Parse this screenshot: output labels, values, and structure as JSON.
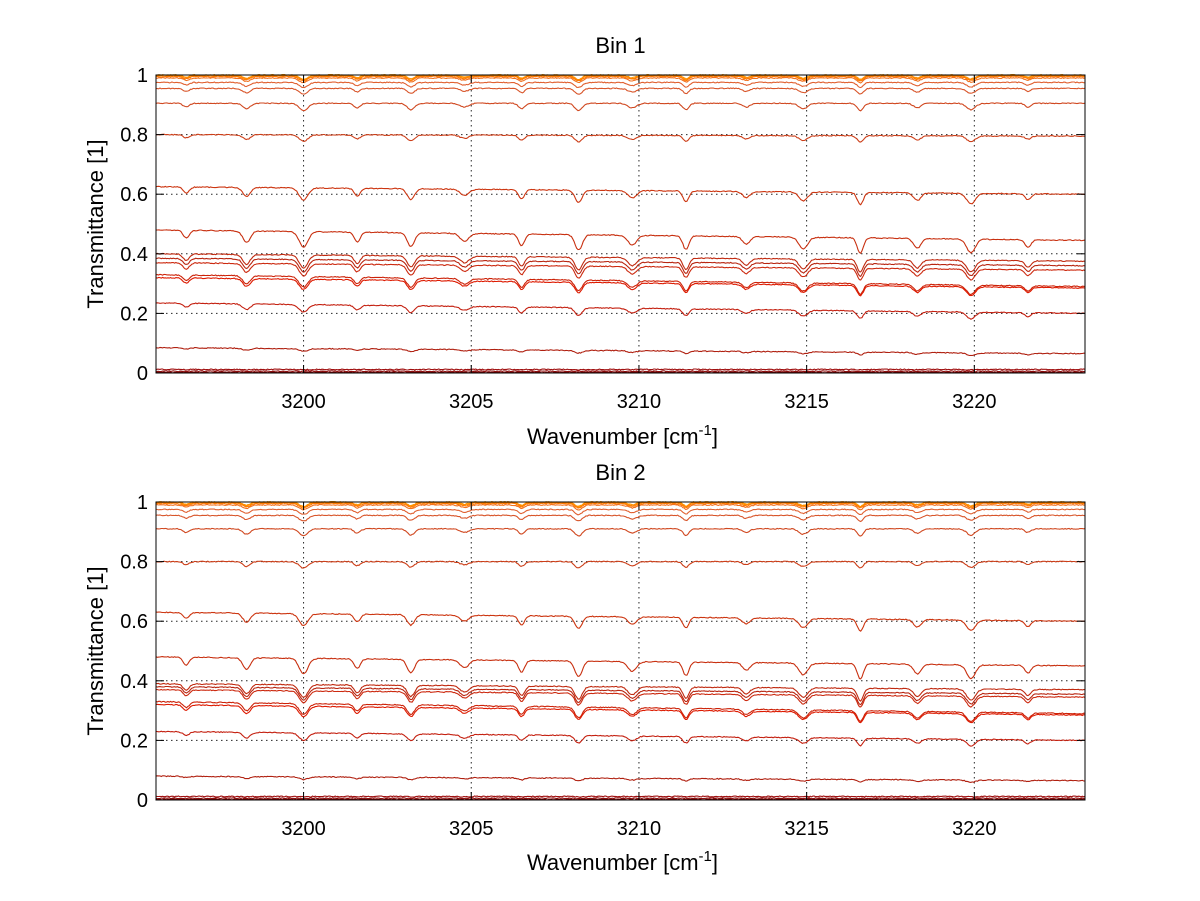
{
  "chart_data": [
    {
      "type": "line",
      "title": "Bin 1",
      "xlabel": "Wavenumber [cm",
      "xlabel_superscript": "-1",
      "xlabel_suffix": "]",
      "ylabel": "Transmittance [1]",
      "xlim": [
        3195.6,
        3223.3
      ],
      "ylim": [
        0,
        1
      ],
      "xticks": [
        3200,
        3205,
        3210,
        3215,
        3220
      ],
      "yticks": [
        0,
        0.2,
        0.4,
        0.6,
        0.8,
        1
      ],
      "ytick_labels": [
        "0",
        "0.2",
        "0.4",
        "0.6",
        "0.8",
        "1"
      ],
      "grid": true,
      "absorption_lines": [
        3196.5,
        3198.3,
        3200.0,
        3201.6,
        3203.2,
        3204.8,
        3206.5,
        3208.2,
        3209.8,
        3211.4,
        3213.2,
        3214.9,
        3216.6,
        3218.3,
        3219.9,
        3221.6
      ],
      "series": [
        {
          "start": 1.0,
          "end": 1.0,
          "color": "#ff9900"
        },
        {
          "start": 0.998,
          "end": 0.998,
          "color": "#ff8a00"
        },
        {
          "start": 0.995,
          "end": 0.995,
          "color": "#ff7a00"
        },
        {
          "start": 0.99,
          "end": 0.99,
          "color": "#f07020"
        },
        {
          "start": 0.975,
          "end": 0.975,
          "color": "#e06030"
        },
        {
          "start": 0.955,
          "end": 0.955,
          "color": "#d8552a"
        },
        {
          "start": 0.905,
          "end": 0.905,
          "color": "#d04820"
        },
        {
          "start": 0.8,
          "end": 0.795,
          "color": "#cc3e18"
        },
        {
          "start": 0.625,
          "end": 0.6,
          "color": "#cc3510"
        },
        {
          "start": 0.48,
          "end": 0.445,
          "color": "#c83010"
        },
        {
          "start": 0.4,
          "end": 0.375,
          "color": "#c02a10"
        },
        {
          "start": 0.385,
          "end": 0.36,
          "color": "#b82510"
        },
        {
          "start": 0.37,
          "end": 0.345,
          "color": "#cc2a10"
        },
        {
          "start": 0.33,
          "end": 0.29,
          "color": "#cc2208"
        },
        {
          "start": 0.32,
          "end": 0.285,
          "color": "#dd1a00"
        },
        {
          "start": 0.235,
          "end": 0.2,
          "color": "#c42010"
        },
        {
          "start": 0.085,
          "end": 0.065,
          "color": "#b02010"
        },
        {
          "start": 0.012,
          "end": 0.012,
          "color": "#a01010"
        },
        {
          "start": 0.006,
          "end": 0.006,
          "color": "#901010"
        },
        {
          "start": 0.002,
          "end": 0.002,
          "color": "#800808"
        }
      ]
    },
    {
      "type": "line",
      "title": "Bin 2",
      "xlabel": "Wavenumber [cm",
      "xlabel_superscript": "-1",
      "xlabel_suffix": "]",
      "ylabel": "Transmittance [1]",
      "xlim": [
        3195.6,
        3223.3
      ],
      "ylim": [
        0,
        1
      ],
      "xticks": [
        3200,
        3205,
        3210,
        3215,
        3220
      ],
      "yticks": [
        0,
        0.2,
        0.4,
        0.6,
        0.8,
        1
      ],
      "ytick_labels": [
        "0",
        "0.2",
        "0.4",
        "0.6",
        "0.8",
        "1"
      ],
      "grid": true,
      "absorption_lines": [
        3196.5,
        3198.3,
        3200.0,
        3201.6,
        3203.2,
        3204.8,
        3206.5,
        3208.2,
        3209.8,
        3211.4,
        3213.2,
        3214.9,
        3216.6,
        3218.3,
        3219.9,
        3221.6
      ],
      "series": [
        {
          "start": 1.0,
          "end": 1.0,
          "color": "#ff9900"
        },
        {
          "start": 0.998,
          "end": 0.998,
          "color": "#ff8a00"
        },
        {
          "start": 0.995,
          "end": 0.995,
          "color": "#ff7a00"
        },
        {
          "start": 0.99,
          "end": 0.99,
          "color": "#f07020"
        },
        {
          "start": 0.975,
          "end": 0.975,
          "color": "#e06030"
        },
        {
          "start": 0.955,
          "end": 0.955,
          "color": "#d8552a"
        },
        {
          "start": 0.91,
          "end": 0.91,
          "color": "#d04820"
        },
        {
          "start": 0.8,
          "end": 0.8,
          "color": "#cc3e18"
        },
        {
          "start": 0.63,
          "end": 0.6,
          "color": "#cc3510"
        },
        {
          "start": 0.48,
          "end": 0.45,
          "color": "#c83010"
        },
        {
          "start": 0.39,
          "end": 0.37,
          "color": "#c02a10"
        },
        {
          "start": 0.38,
          "end": 0.355,
          "color": "#b82510"
        },
        {
          "start": 0.37,
          "end": 0.345,
          "color": "#cc2a10"
        },
        {
          "start": 0.33,
          "end": 0.29,
          "color": "#cc2208"
        },
        {
          "start": 0.32,
          "end": 0.285,
          "color": "#dd1a00"
        },
        {
          "start": 0.23,
          "end": 0.2,
          "color": "#c42010"
        },
        {
          "start": 0.08,
          "end": 0.065,
          "color": "#b02010"
        },
        {
          "start": 0.012,
          "end": 0.012,
          "color": "#a01010"
        },
        {
          "start": 0.006,
          "end": 0.006,
          "color": "#901010"
        },
        {
          "start": 0.002,
          "end": 0.002,
          "color": "#800808"
        }
      ]
    }
  ]
}
